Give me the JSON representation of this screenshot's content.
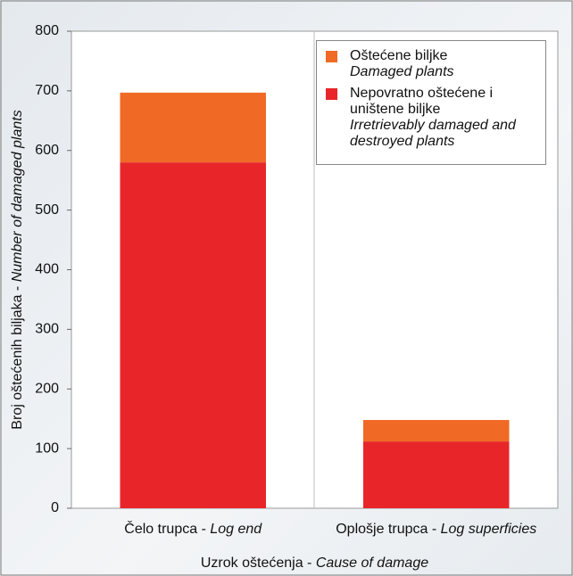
{
  "chart_data": {
    "type": "stacked_bar",
    "xlabel": "Uzrok oštećenja - Cause of damage",
    "ylabel": "Broj oštećenih biljaka - Number of damaged plants",
    "categories": [
      "Čelo trupca - Log end",
      "Oplošje trupca - Log superficies"
    ],
    "series": [
      {
        "name": "Nepovratno oštećene i uništene biljke",
        "name_en": "Irretrievably damaged and destroyed plants",
        "color": "#e8262a",
        "values": [
          580,
          112
        ]
      },
      {
        "name": "Oštećene biljke",
        "name_en": "Damaged plants",
        "color": "#f06a25",
        "values": [
          117,
          36
        ]
      }
    ],
    "ylim": [
      0,
      800
    ],
    "yticks": [
      0,
      100,
      200,
      300,
      400,
      500,
      600,
      700,
      800
    ],
    "grid": false,
    "legend": "upper right"
  }
}
